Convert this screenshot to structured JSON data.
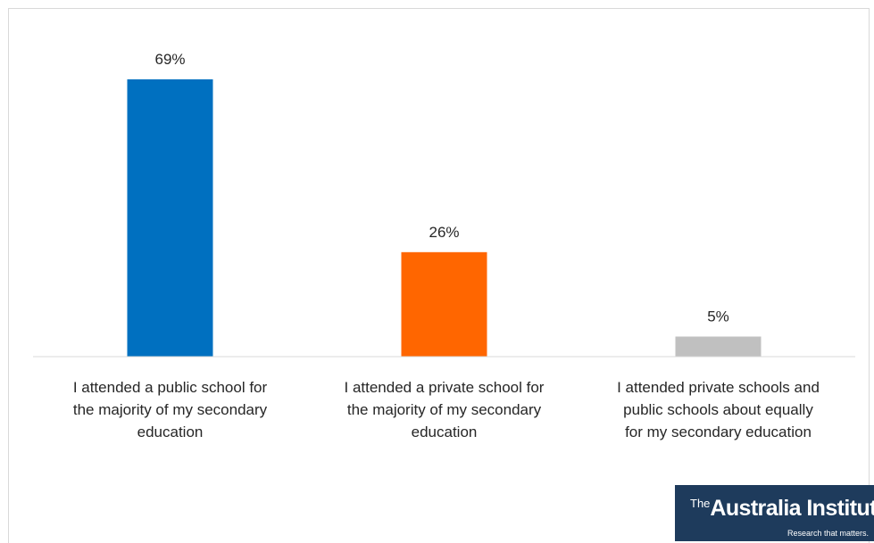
{
  "chart_data": {
    "type": "bar",
    "categories": [
      "I attended a public school for the majority of my secondary education",
      "I attended a private school for the majority of my secondary education",
      "I attended private schools and public schools about equally for my secondary education"
    ],
    "category_lines": [
      [
        "I attended a public school for",
        "the majority of my secondary",
        "education"
      ],
      [
        "I attended a private school for",
        "the majority of my secondary",
        "education"
      ],
      [
        "I attended private schools and",
        "public schools about equally",
        "for my secondary education"
      ]
    ],
    "values": [
      69,
      26,
      5
    ],
    "data_labels": [
      "69%",
      "26%",
      "5%"
    ],
    "colors": [
      "#0070c0",
      "#ff6600",
      "#c0c0c0"
    ],
    "ylim": [
      0,
      100
    ],
    "grid": false,
    "legend": "none",
    "title": "",
    "xlabel": "",
    "ylabel": ""
  },
  "logo": {
    "prefix": "The",
    "name": "Australia Institute",
    "tagline": "Research that matters."
  }
}
